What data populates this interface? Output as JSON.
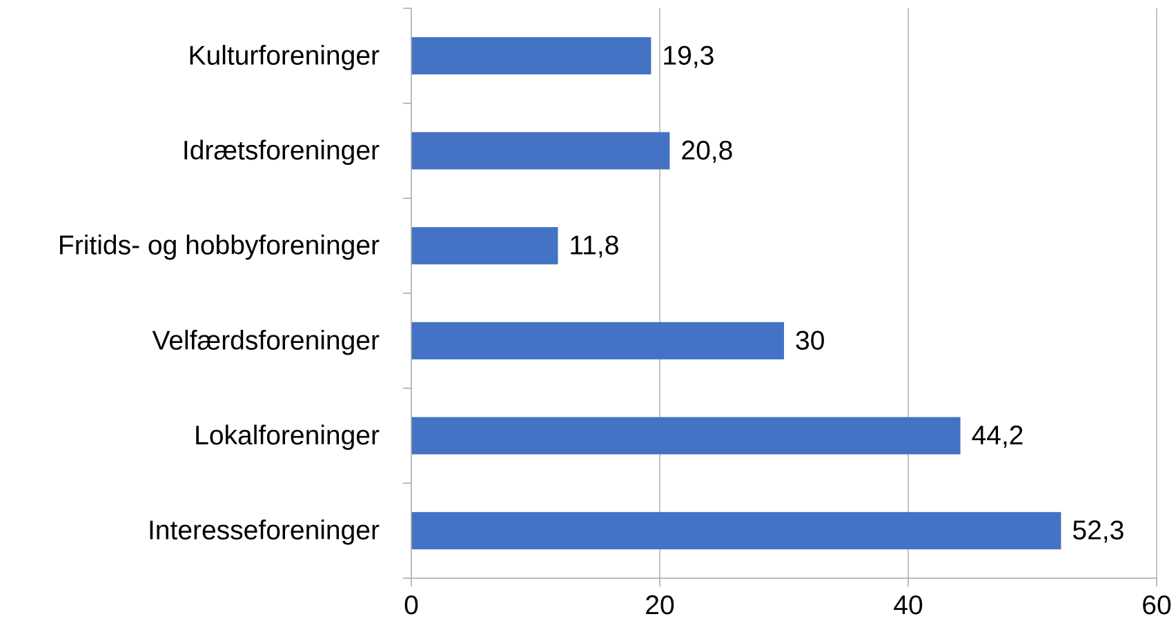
{
  "chart_data": {
    "type": "bar",
    "orientation": "horizontal",
    "categories": [
      "Kulturforeninger",
      "Idrætsforeninger",
      "Fritids- og hobbyforeninger",
      "Velfærdsforeninger",
      "Lokalforeninger",
      "Interesseforeninger"
    ],
    "values": [
      19.3,
      20.8,
      11.8,
      30,
      44.2,
      52.3
    ],
    "value_labels": [
      "19,3",
      "20,8",
      "11,8",
      "30",
      "44,2",
      "52,3"
    ],
    "xlim": [
      0,
      60
    ],
    "xticks": [
      0,
      20,
      40,
      60
    ],
    "xtick_labels": [
      "0",
      "20",
      "40",
      "60"
    ],
    "title": "",
    "xlabel": "",
    "ylabel": "",
    "grid": "vertical",
    "legend": "none",
    "colors": {
      "bar": "#4472C4",
      "grid": "#A6A6A6",
      "axis": "#A6A6A6",
      "text": "#000000"
    }
  }
}
